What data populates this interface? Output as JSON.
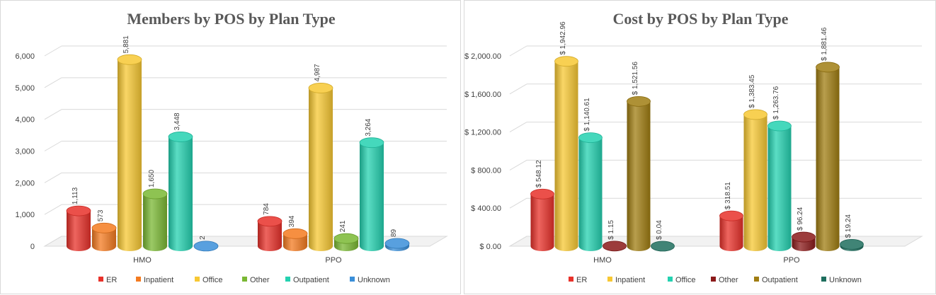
{
  "chart_data": [
    {
      "type": "bar",
      "title": "Members by POS by Plan Type",
      "categories": [
        "HMO",
        "PPO"
      ],
      "ylim": [
        0,
        6000
      ],
      "yticks": [
        0,
        1000,
        2000,
        3000,
        4000,
        5000,
        6000
      ],
      "ytick_labels": [
        "0",
        "1,000",
        "2,000",
        "3,000",
        "4,000",
        "5,000",
        "6,000"
      ],
      "grid": true,
      "legend_position": "bottom",
      "series": [
        {
          "name": "ER",
          "color": "#e8312a",
          "values": [
            1113,
            784
          ],
          "labels": [
            "1,113",
            "784"
          ]
        },
        {
          "name": "Inpatient",
          "color": "#f47b20",
          "values": [
            573,
            394
          ],
          "labels": [
            "573",
            "394"
          ]
        },
        {
          "name": "Office",
          "color": "#f7c833",
          "values": [
            5881,
            4987
          ],
          "labels": [
            "5,881",
            "4,987"
          ]
        },
        {
          "name": "Other",
          "color": "#7ab833",
          "values": [
            1650,
            241
          ],
          "labels": [
            "1,650",
            "241"
          ]
        },
        {
          "name": "Outpatient",
          "color": "#24d1b0",
          "values": [
            3448,
            3264
          ],
          "labels": [
            "3,448",
            "3,264"
          ]
        },
        {
          "name": "Unknown",
          "color": "#3a8fd9",
          "values": [
            2,
            89
          ],
          "labels": [
            "2",
            "89"
          ]
        }
      ]
    },
    {
      "type": "bar",
      "title": "Cost by POS by Plan Type",
      "categories": [
        "HMO",
        "PPO"
      ],
      "ylim": [
        0,
        2000
      ],
      "yticks": [
        0,
        400,
        800,
        1200,
        1600,
        2000
      ],
      "ytick_labels": [
        "$ 0.00",
        "$ 400.00",
        "$ 800.00",
        "$ 1,200.00",
        "$ 1,600.00",
        "$ 2,000.00"
      ],
      "grid": true,
      "legend_position": "bottom",
      "series": [
        {
          "name": "ER",
          "color": "#e8312a",
          "values": [
            548.12,
            318.51
          ],
          "labels": [
            "$ 548.12",
            "$ 318.51"
          ]
        },
        {
          "name": "Inpatient",
          "color": "#f7c833",
          "values": [
            1942.96,
            1383.45
          ],
          "labels": [
            "$ 1,942.96",
            "$ 1,383.45"
          ]
        },
        {
          "name": "Office",
          "color": "#24d1b0",
          "values": [
            1140.61,
            1263.76
          ],
          "labels": [
            "$ 1,140.61",
            "$ 1,263.76"
          ]
        },
        {
          "name": "Other",
          "color": "#8b1a1a",
          "values": [
            1.15,
            96.24
          ],
          "labels": [
            "$ 1.15",
            "$ 96.24"
          ]
        },
        {
          "name": "Outpatient",
          "color": "#a07d12",
          "values": [
            1521.56,
            1881.46
          ],
          "labels": [
            "$ 1,521.56",
            "$ 1,881.46"
          ]
        },
        {
          "name": "Unknown",
          "color": "#1e6e5e",
          "values": [
            0.04,
            19.24
          ],
          "labels": [
            "$ 0.04",
            "$ 19.24"
          ]
        }
      ]
    }
  ]
}
